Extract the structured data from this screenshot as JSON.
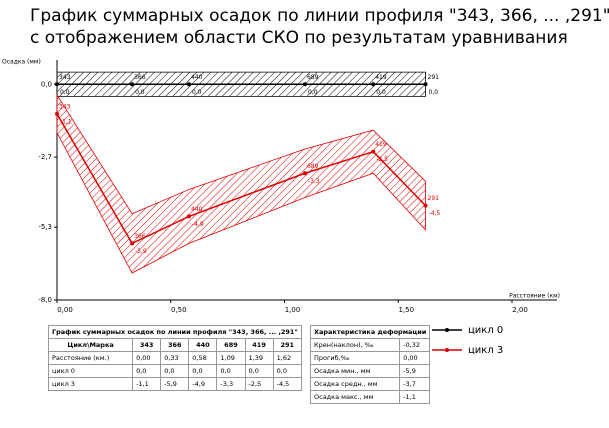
{
  "chart_data": {
    "type": "line",
    "title_lines": [
      "График суммарных осадок по линии профиля \"343, 366, ... ,291\"",
      "с отображением области СКО по результатам уравнивания"
    ],
    "y_label": "Осадка (мм)",
    "x_label": "Расстояние (км)",
    "x": [
      0.0,
      0.33,
      0.58,
      1.09,
      1.39,
      1.62
    ],
    "point_names": [
      "343",
      "366",
      "440",
      "689",
      "419",
      "291"
    ],
    "xlim": [
      0,
      2
    ],
    "ylim": [
      -8,
      0.9
    ],
    "xticks": [
      {
        "value": 0,
        "label": "0,00"
      },
      {
        "value": 0.5,
        "label": "0,50"
      },
      {
        "value": 1,
        "label": "1,00"
      },
      {
        "value": 1.5,
        "label": "1,50"
      },
      {
        "value": 2,
        "label": "2,00"
      }
    ],
    "yticks": [
      {
        "value": 0,
        "label": "0,0"
      },
      {
        "value": -2.7,
        "label": "-2,7"
      },
      {
        "value": -5.3,
        "label": "-5,3"
      },
      {
        "value": -8,
        "label": "-8,0"
      }
    ],
    "grid": false,
    "series": [
      {
        "name": "цикл 0",
        "color": "#000000",
        "values": [
          0,
          0,
          0,
          0,
          0,
          0
        ],
        "value_labels": [
          "0,0",
          "0,0",
          "0,0",
          "0,0",
          "0,0",
          "0,0"
        ],
        "sko": [
          0.45,
          0.45,
          0.45,
          0.45,
          0.45,
          0.45
        ]
      },
      {
        "name": "цикл 3",
        "color": "#e00000",
        "values": [
          -1.1,
          -5.9,
          -4.9,
          -3.3,
          -2.5,
          -4.5
        ],
        "value_labels": [
          "-1,1",
          "-5,9",
          "-4,9",
          "-3,3",
          "-2,5",
          "-4,5"
        ],
        "sko": [
          0.7,
          1.1,
          1.0,
          0.9,
          0.8,
          0.9
        ]
      }
    ]
  },
  "table1": {
    "title": "График суммарных осадок по линии профиля \"343, 366, ... ,291\"",
    "rows": [
      [
        "Цикл\\Марка",
        "343",
        "366",
        "440",
        "689",
        "419",
        "291"
      ],
      [
        "Расстояние (км.)",
        "0,00",
        "0,33",
        "0,58",
        "1,09",
        "1,39",
        "1,62"
      ],
      [
        "цикл 0",
        "0,0",
        "0,0",
        "0,0",
        "0,0",
        "0,0",
        "0,0"
      ],
      [
        "цикл 3",
        "-1,1",
        "-5,9",
        "-4,9",
        "-3,3",
        "-2,5",
        "-4,5"
      ]
    ]
  },
  "table2": {
    "title": "Характеристика деформации",
    "rows": [
      [
        "Крен(наклон), ‰",
        "-0,32"
      ],
      [
        "Прогиб,‰",
        "0,00"
      ],
      [
        "Осадка мин., мм",
        "-5,9"
      ],
      [
        "Осадка средн., мм",
        "-3,7"
      ],
      [
        "Осадка макс., мм",
        "-1,1"
      ]
    ]
  }
}
